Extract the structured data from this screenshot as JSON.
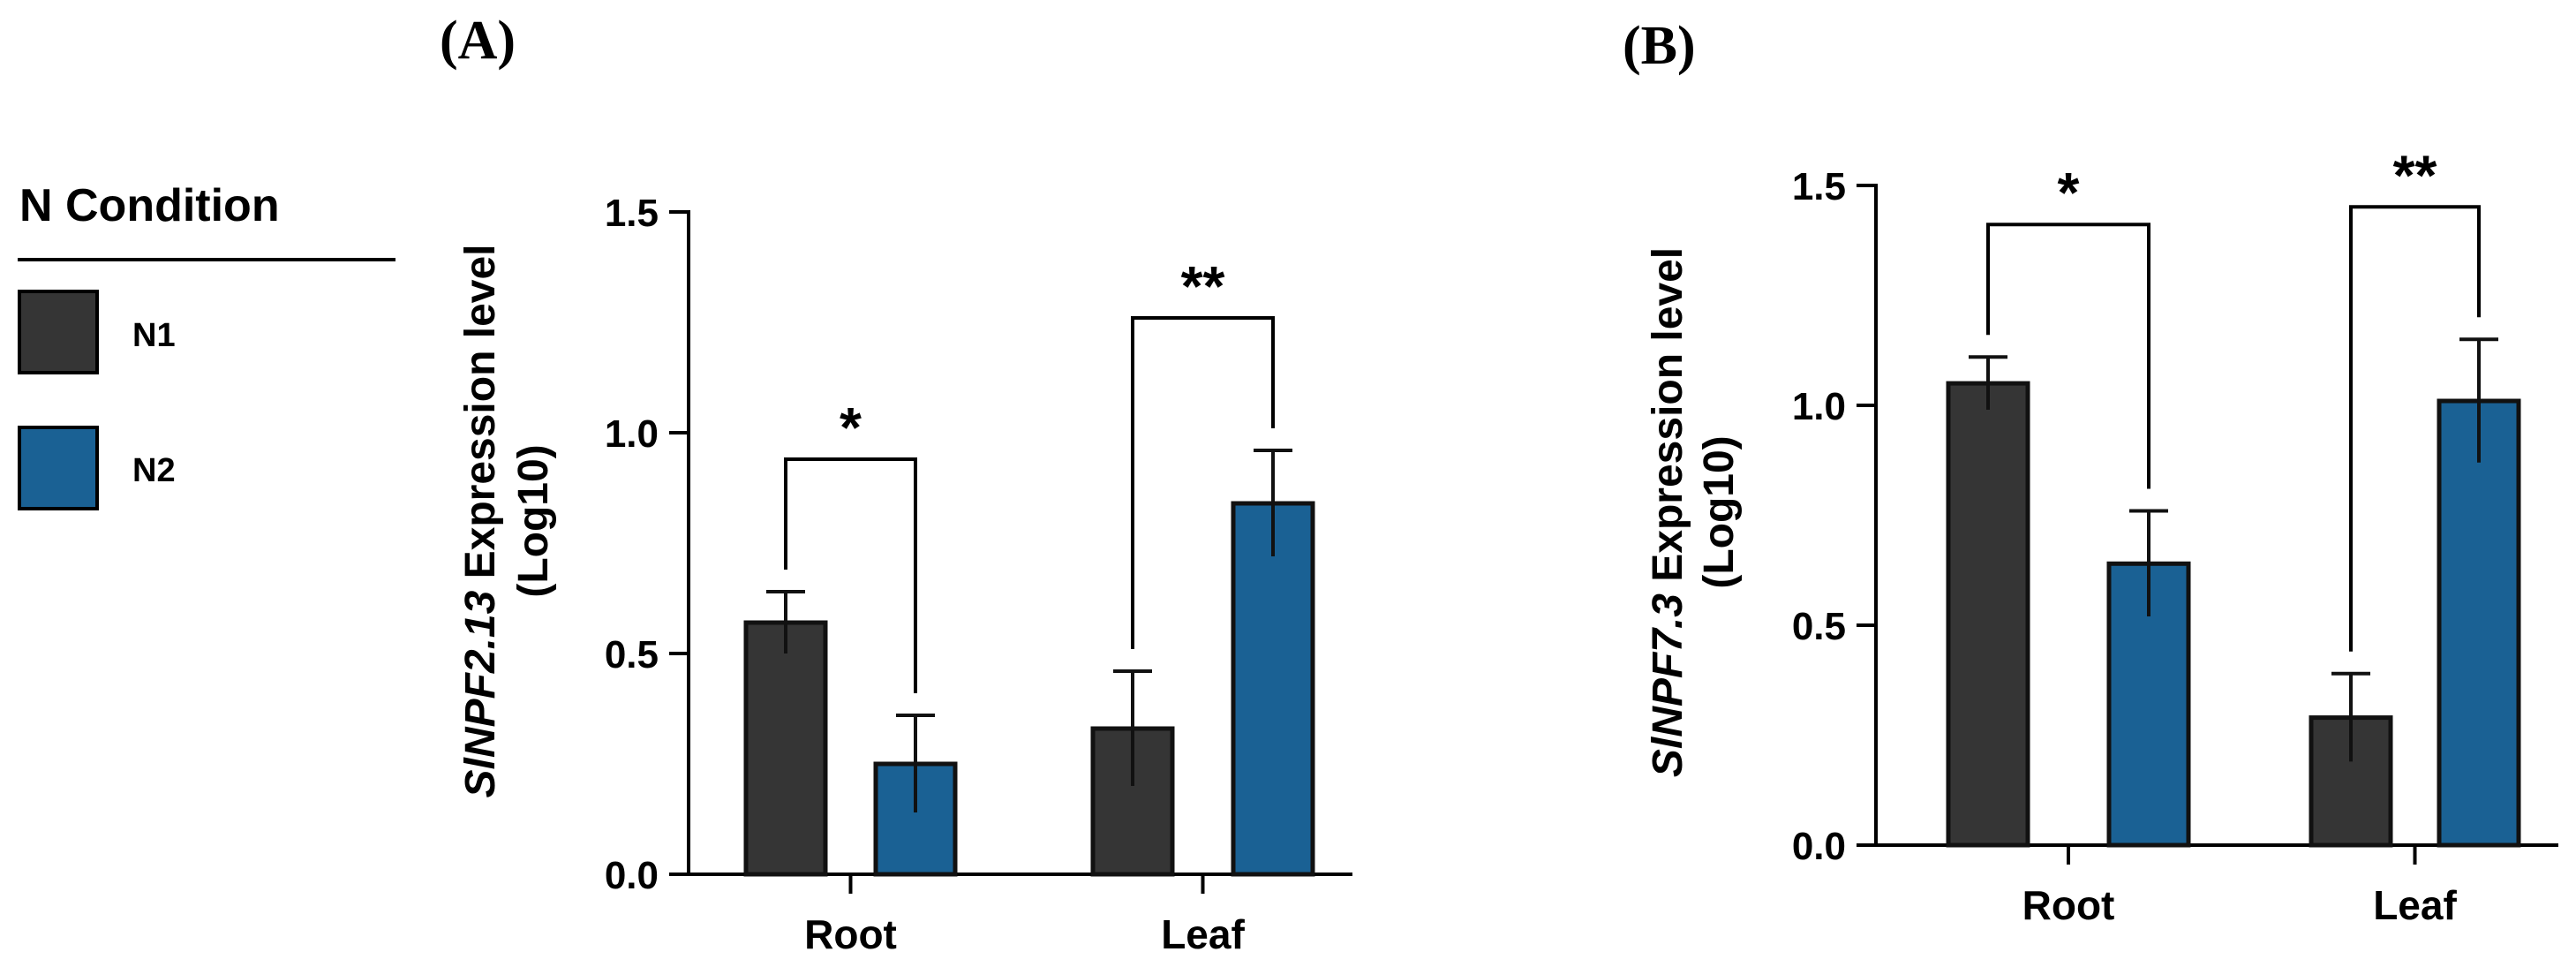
{
  "legend": {
    "title": "N Condition",
    "entries": [
      {
        "label": "N1",
        "color": "#353535"
      },
      {
        "label": "N2",
        "color": "#1a6194"
      }
    ]
  },
  "chart_data": [
    {
      "type": "bar",
      "panel_label": "(A)",
      "ylabel_gene": "SlNPF2.13",
      "ylabel_rest": " Expression level",
      "ylabel_line2": "(Log10)",
      "categories": [
        "Root",
        "Leaf"
      ],
      "ylim": [
        0,
        1.5
      ],
      "yticks": [
        "0.0",
        "0.5",
        "1.0",
        "1.5"
      ],
      "series": [
        {
          "name": "N1",
          "values": [
            0.57,
            0.33
          ],
          "errors": [
            0.07,
            0.13
          ]
        },
        {
          "name": "N2",
          "values": [
            0.25,
            0.84
          ],
          "errors": [
            0.11,
            0.12
          ]
        }
      ],
      "significance": [
        {
          "category": "Root",
          "label": "*"
        },
        {
          "category": "Leaf",
          "label": "**"
        }
      ]
    },
    {
      "type": "bar",
      "panel_label": "(B)",
      "ylabel_gene": "SlNPF7.3",
      "ylabel_rest": " Expression level",
      "ylabel_line2": "(Log10)",
      "categories": [
        "Root",
        "Leaf"
      ],
      "ylim": [
        0,
        1.5
      ],
      "yticks": [
        "0.0",
        "0.5",
        "1.0",
        "1.5"
      ],
      "series": [
        {
          "name": "N1",
          "values": [
            1.05,
            0.29
          ],
          "errors": [
            0.06,
            0.1
          ]
        },
        {
          "name": "N2",
          "values": [
            0.64,
            1.01
          ],
          "errors": [
            0.12,
            0.14
          ]
        }
      ],
      "significance": [
        {
          "category": "Root",
          "label": "*"
        },
        {
          "category": "Leaf",
          "label": "**"
        }
      ]
    }
  ]
}
